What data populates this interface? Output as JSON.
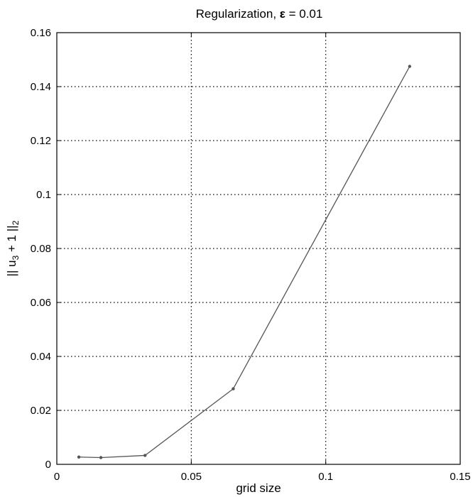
{
  "chart_data": {
    "type": "line",
    "title_prefix": "Regularization,  ",
    "title_symbol": "ε",
    "title_suffix": " = 0.01",
    "xlabel": "grid size",
    "ylabel_parts": {
      "open": "|| u",
      "sub": "3",
      "mid": " + 1 ||",
      "sub2": "2"
    },
    "xlim": [
      0,
      0.15
    ],
    "ylim": [
      0,
      0.16
    ],
    "x_ticks": [
      0,
      0.05,
      0.1,
      0.15
    ],
    "x_tick_labels": [
      "0",
      "0.05",
      "0.1",
      "0.15"
    ],
    "y_ticks": [
      0,
      0.02,
      0.04,
      0.06,
      0.08,
      0.1,
      0.12,
      0.14,
      0.16
    ],
    "y_tick_labels": [
      "0",
      "0.02",
      "0.04",
      "0.06",
      "0.08",
      "0.1",
      "0.12",
      "0.14",
      "0.16"
    ],
    "grid": true,
    "series": [
      {
        "x": [
          0.0082,
          0.0164,
          0.0328,
          0.0656,
          0.1312
        ],
        "y": [
          0.0027,
          0.0025,
          0.0033,
          0.028,
          0.1475
        ],
        "color": "#555555",
        "marker": "dot"
      }
    ]
  }
}
